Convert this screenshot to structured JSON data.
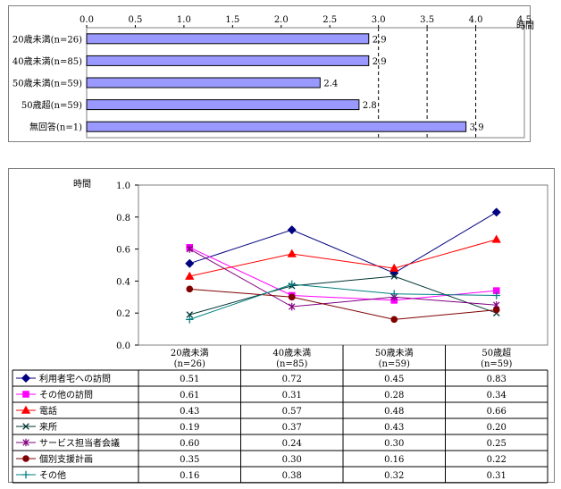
{
  "chart_data": [
    {
      "type": "bar",
      "orientation": "horizontal",
      "title": "",
      "xlabel": "時間",
      "ylabel": "",
      "xlim": [
        0,
        4.5
      ],
      "xticks": [
        "0.0",
        "0.5",
        "1.0",
        "1.5",
        "2.0",
        "2.5",
        "3.0",
        "3.5",
        "4.0",
        "4.5"
      ],
      "categories": [
        "20歳未満(n=26)",
        "40歳未満(n=85)",
        "50歳未満(n=59)",
        "50歳超(n=59)",
        "無回答(n=1)"
      ],
      "values": [
        2.9,
        2.9,
        2.4,
        2.8,
        3.9
      ],
      "value_labels": [
        "2.9",
        "2.9",
        "2.4",
        "2.8",
        "3.9"
      ],
      "bar_color": "#9999ff",
      "grid": "vertical dashed from 3.0"
    },
    {
      "type": "line",
      "title": "",
      "ylabel": "時間",
      "ylim": [
        0,
        1.0
      ],
      "yticks": [
        "0.0",
        "0.2",
        "0.4",
        "0.6",
        "0.8",
        "1.0"
      ],
      "categories": [
        {
          "line1": "20歳未満",
          "line2": "(n=26)"
        },
        {
          "line1": "40歳未満",
          "line2": "(n=85)"
        },
        {
          "line1": "50歳未満",
          "line2": "(n=59)"
        },
        {
          "line1": "50歳超",
          "line2": "(n=59)"
        }
      ],
      "series": [
        {
          "name": "利用者宅への訪問",
          "values": [
            0.51,
            0.72,
            0.45,
            0.83
          ],
          "labels": [
            "0.51",
            "0.72",
            "0.45",
            "0.83"
          ],
          "color": "#000080",
          "marker": "diamond"
        },
        {
          "name": "その他の訪問",
          "values": [
            0.61,
            0.31,
            0.28,
            0.34
          ],
          "labels": [
            "0.61",
            "0.31",
            "0.28",
            "0.34"
          ],
          "color": "#ff00ff",
          "marker": "square"
        },
        {
          "name": "電話",
          "values": [
            0.43,
            0.57,
            0.48,
            0.66
          ],
          "labels": [
            "0.43",
            "0.57",
            "0.48",
            "0.66"
          ],
          "color": "#ff0000",
          "marker": "triangle"
        },
        {
          "name": "来所",
          "values": [
            0.19,
            0.37,
            0.43,
            0.2
          ],
          "labels": [
            "0.19",
            "0.37",
            "0.43",
            "0.20"
          ],
          "color": "#003333",
          "marker": "x"
        },
        {
          "name": "サービス担当者会議",
          "values": [
            0.6,
            0.24,
            0.3,
            0.25
          ],
          "labels": [
            "0.60",
            "0.24",
            "0.30",
            "0.25"
          ],
          "color": "#800080",
          "marker": "star"
        },
        {
          "name": "個別支援計画",
          "values": [
            0.35,
            0.3,
            0.16,
            0.22
          ],
          "labels": [
            "0.35",
            "0.30",
            "0.16",
            "0.22"
          ],
          "color": "#800000",
          "marker": "circle"
        },
        {
          "name": "その他",
          "values": [
            0.16,
            0.38,
            0.32,
            0.31
          ],
          "labels": [
            "0.16",
            "0.38",
            "0.32",
            "0.31"
          ],
          "color": "#008080",
          "marker": "plus"
        }
      ],
      "data_table": true
    }
  ]
}
